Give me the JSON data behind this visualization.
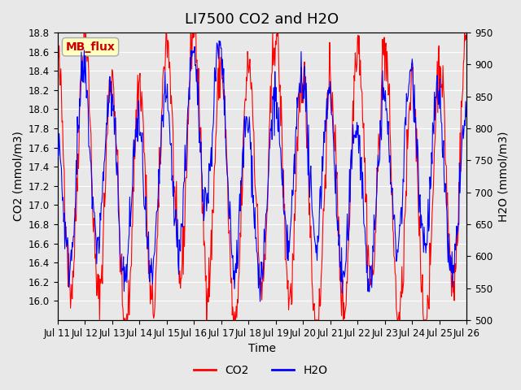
{
  "title": "LI7500 CO2 and H2O",
  "xlabel": "Time",
  "ylabel_left": "CO2 (mmol/m3)",
  "ylabel_right": "H2O (mmol/m3)",
  "co2_ylim": [
    15.8,
    18.8
  ],
  "h2o_ylim": [
    500,
    950
  ],
  "co2_yticks": [
    16.0,
    16.2,
    16.4,
    16.6,
    16.8,
    17.0,
    17.2,
    17.4,
    17.6,
    17.8,
    18.0,
    18.2,
    18.4,
    18.6,
    18.8
  ],
  "h2o_yticks": [
    500,
    550,
    600,
    650,
    700,
    750,
    800,
    850,
    900,
    950
  ],
  "xtick_labels": [
    "Jul 11",
    "Jul 12",
    "Jul 13",
    "Jul 14",
    "Jul 15",
    "Jul 16",
    "Jul 17",
    "Jul 18",
    "Jul 19",
    "Jul 20",
    "Jul 21",
    "Jul 22",
    "Jul 23",
    "Jul 24",
    "Jul 25",
    "Jul 26"
  ],
  "co2_color": "#FF0000",
  "h2o_color": "#0000FF",
  "background_color": "#E8E8E8",
  "plot_bg_color": "#E8E8E8",
  "annotation_text": "MB_flux",
  "annotation_bg": "#FFFFC0",
  "annotation_fg": "#CC0000",
  "annotation_border": "#AAAAAA",
  "legend_co2": "CO2",
  "legend_h2o": "H2O",
  "title_fontsize": 13,
  "label_fontsize": 10,
  "tick_fontsize": 8.5,
  "legend_fontsize": 10
}
